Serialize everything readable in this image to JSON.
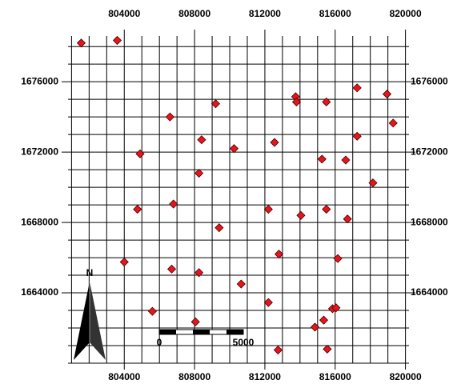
{
  "chart_data": {
    "type": "scatter",
    "x": [
      801550,
      803600,
      809200,
      806600,
      808400,
      804900,
      810250,
      808250,
      812550,
      813750,
      813800,
      815500,
      817250,
      818950,
      819300,
      817250,
      815250,
      816600,
      818150,
      804750,
      806800,
      812200,
      814050,
      815500,
      816700,
      809400,
      804000,
      806700,
      808250,
      812800,
      816150,
      810650,
      812200,
      805600,
      815850,
      816050,
      808050,
      815350,
      814850,
      812750,
      815550
    ],
    "y": [
      1678200,
      1678350,
      1674750,
      1674000,
      1672700,
      1671900,
      1672200,
      1670800,
      1672550,
      1675150,
      1674850,
      1674850,
      1675650,
      1675300,
      1673650,
      1672900,
      1671600,
      1671550,
      1670250,
      1668750,
      1669050,
      1668750,
      1668400,
      1668750,
      1668200,
      1667700,
      1665750,
      1665350,
      1665150,
      1666200,
      1665950,
      1664500,
      1663450,
      1662950,
      1663100,
      1663150,
      1662350,
      1662450,
      1662050,
      1660750,
      1660800
    ],
    "color": "#e8141c",
    "xlim": [
      800800,
      820200
    ],
    "ylim": [
      1660000,
      1678600
    ],
    "xticks": [
      804000,
      808000,
      812000,
      816000,
      820000
    ],
    "yticks": [
      1664000,
      1668000,
      1672000,
      1676000
    ],
    "xgrid": [
      801000,
      802000,
      803000,
      804000,
      805000,
      806000,
      807000,
      808000,
      809000,
      810000,
      811000,
      812000,
      813000,
      814000,
      815000,
      816000,
      817000,
      818000,
      819000,
      820000
    ],
    "ygrid": [
      1660000,
      1661000,
      1662000,
      1663000,
      1664000,
      1665000,
      1666000,
      1667000,
      1668000,
      1669000,
      1670000,
      1671000,
      1672000,
      1673000,
      1674000,
      1675000,
      1676000,
      1677000,
      1678000
    ],
    "scale_bar": {
      "labels": [
        "0",
        "5000"
      ]
    },
    "north_label": "N"
  }
}
